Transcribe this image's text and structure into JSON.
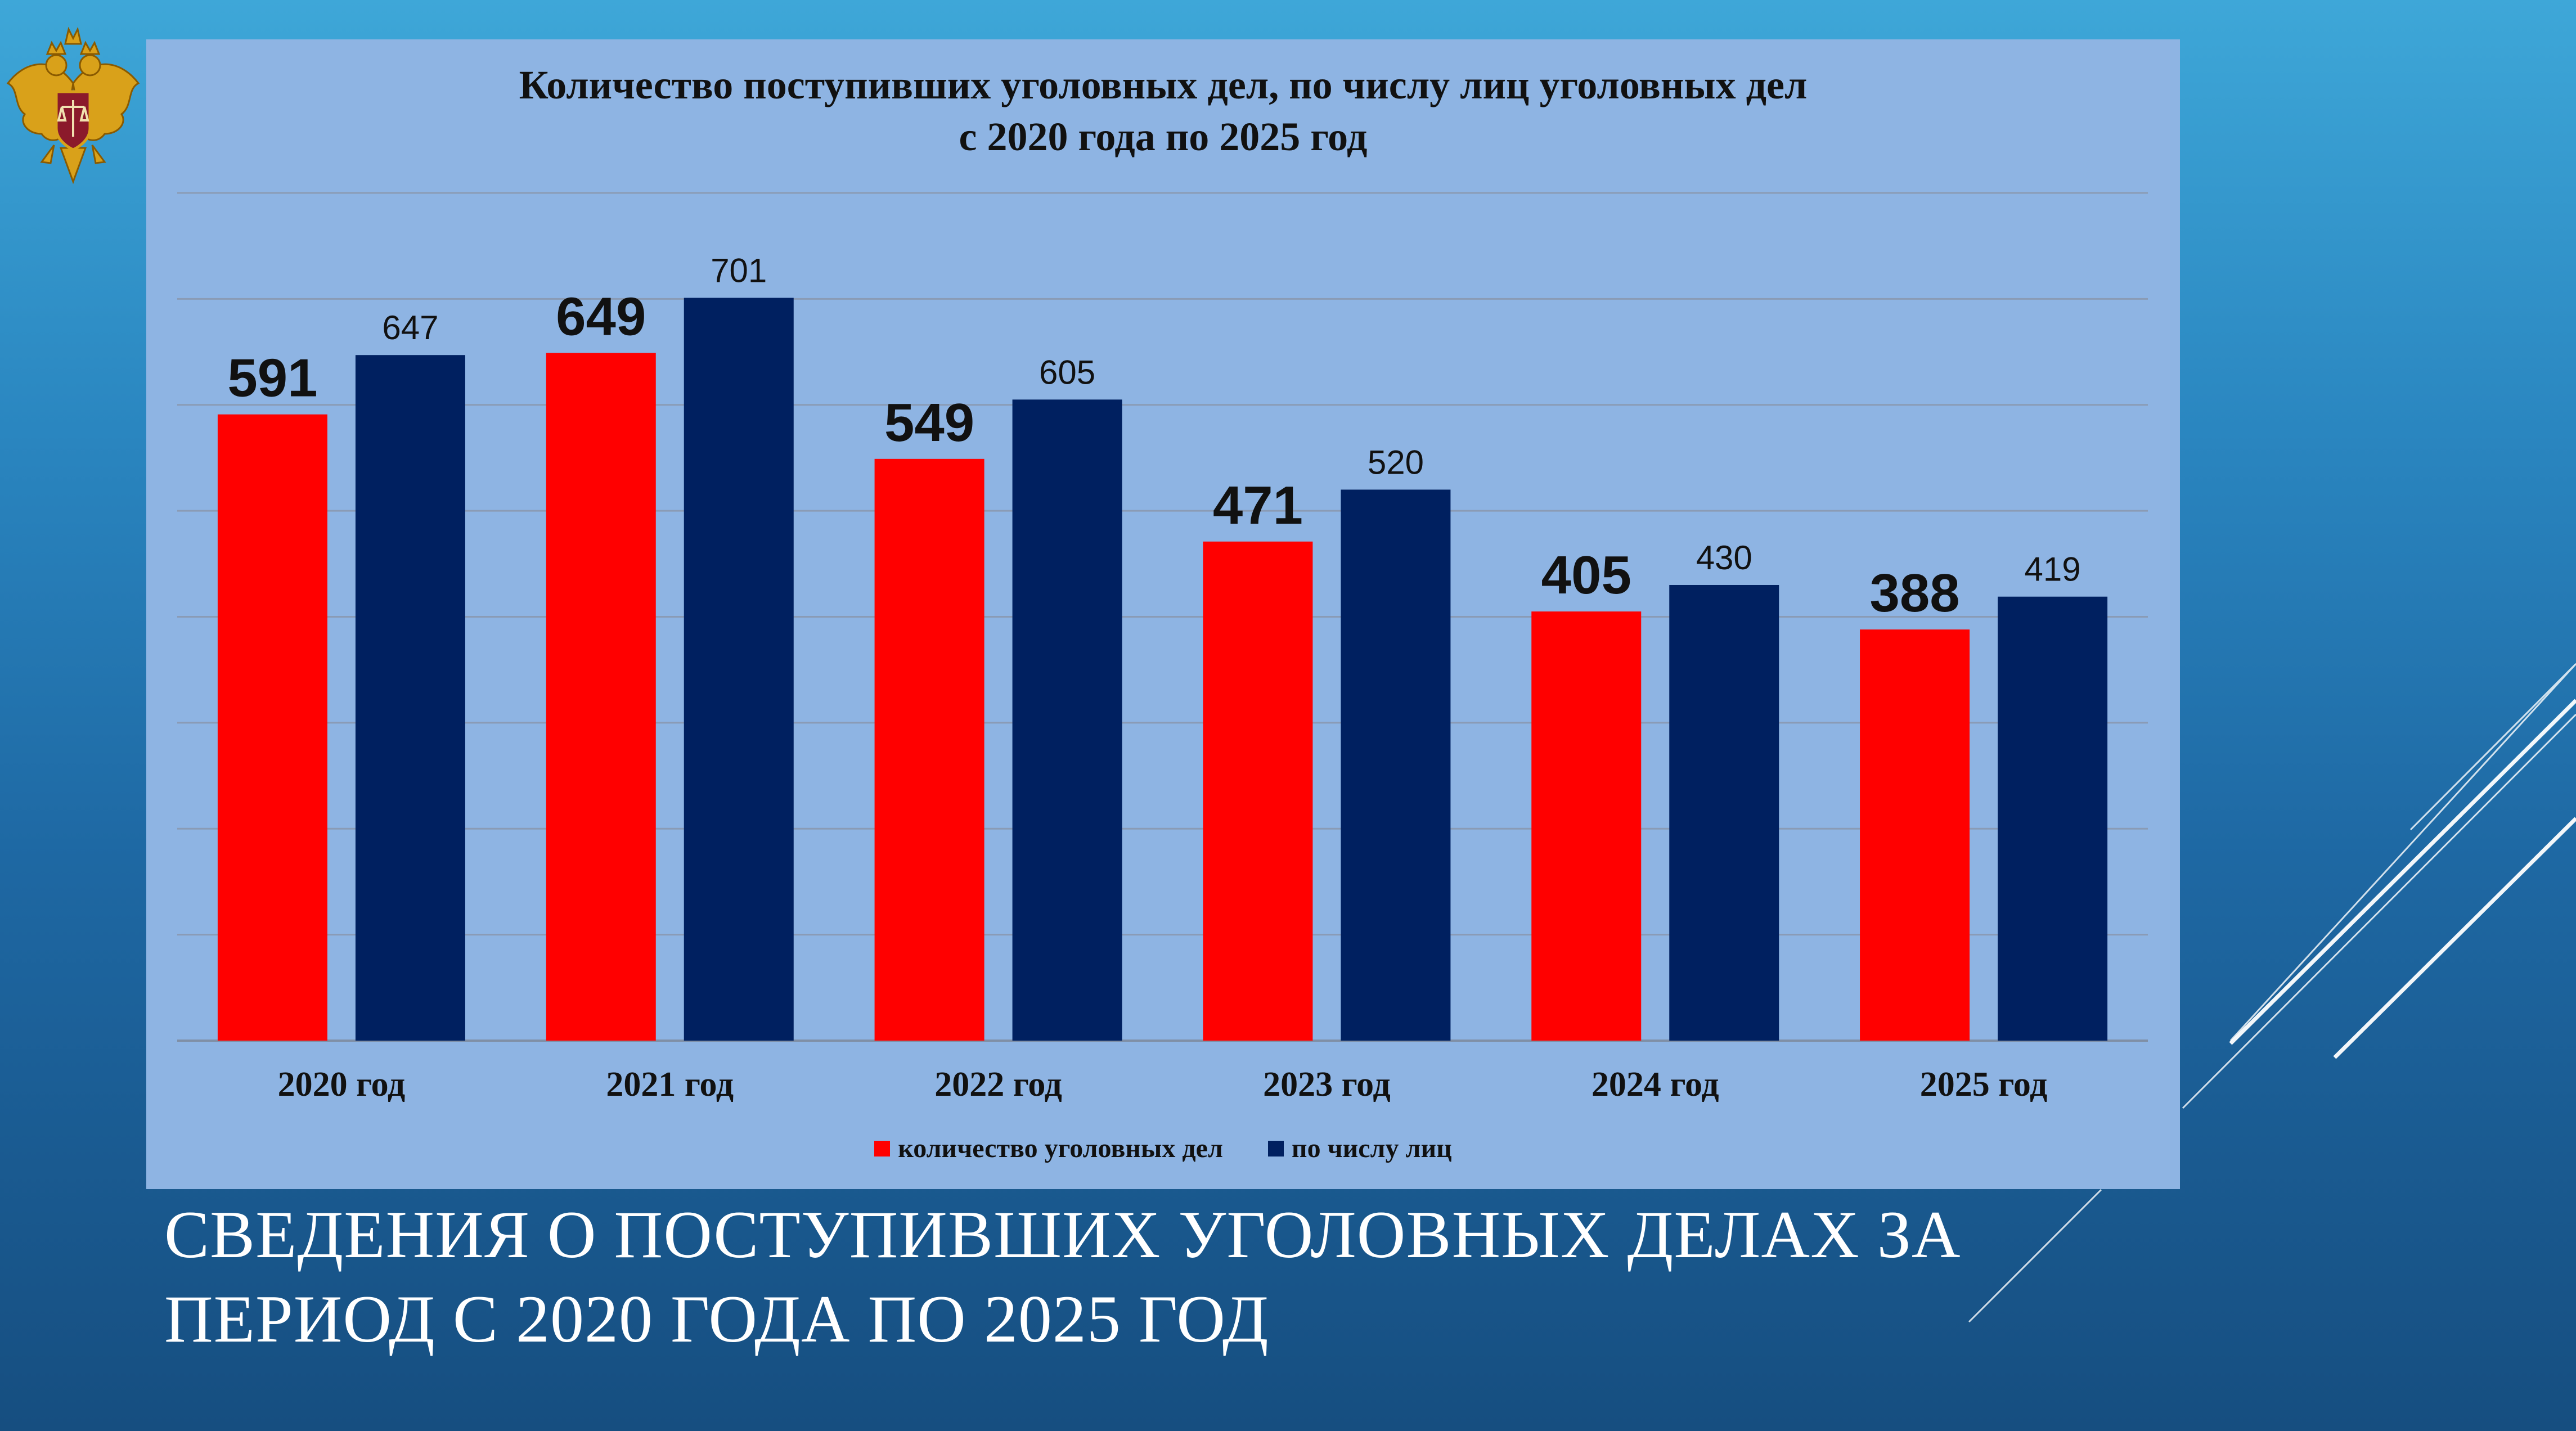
{
  "slide": {
    "caption_line1": "СВЕДЕНИЯ О ПОСТУПИВШИХ УГОЛОВНЫХ ДЕЛАХ ЗА",
    "caption_line2": "ПЕРИОД С 2020 ГОДА ПО 2025 ГОД",
    "background_color": "#2a86c0",
    "emblem_icon": "russian-double-headed-eagle-emblem"
  },
  "chart_data": {
    "type": "bar",
    "title_line1": "Количество поступивших уголовных дел, по числу лиц уголовных дел",
    "title_line2": "с 2020 года по 2025 год",
    "categories": [
      "2020 год",
      "2021 год",
      "2022 год",
      "2023 год",
      "2024 год",
      "2025 год"
    ],
    "series": [
      {
        "name": "количество уголовных дел",
        "color": "#ff0000",
        "values": [
          591,
          649,
          549,
          471,
          405,
          388
        ]
      },
      {
        "name": "по числу лиц",
        "color": "#002060",
        "values": [
          647,
          701,
          605,
          520,
          430,
          419
        ]
      }
    ],
    "ylim": [
      0,
      800
    ],
    "grid": true,
    "legend_position": "bottom",
    "panel_color": "#8eb4e3"
  }
}
